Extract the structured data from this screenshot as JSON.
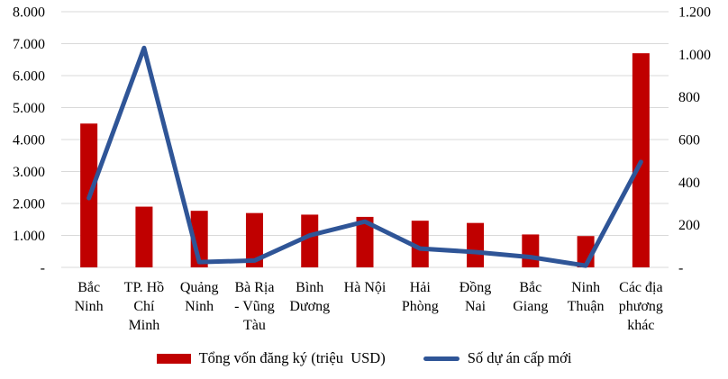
{
  "chart_data": {
    "type": "combo-bar-line",
    "title": "",
    "categories": [
      "Bắc Ninh",
      "TP. Hồ Chí Minh",
      "Quảng Ninh",
      "Bà Rịa - Vũng Tàu",
      "Bình Dương",
      "Hà Nội",
      "Hải Phòng",
      "Đồng Nai",
      "Bắc Giang",
      "Ninh Thuận",
      "Các địa phương khác"
    ],
    "category_label_lines": [
      [
        "Bắc",
        "Ninh"
      ],
      [
        "TP. Hồ",
        "Chí",
        "Minh"
      ],
      [
        "Quảng",
        "Ninh"
      ],
      [
        "Bà Rịa",
        "- Vũng",
        "Tàu"
      ],
      [
        "Bình",
        "Dương"
      ],
      [
        "Hà Nội"
      ],
      [
        "Hải",
        "Phòng"
      ],
      [
        "Đồng",
        "Nai"
      ],
      [
        "Bắc",
        "Giang"
      ],
      [
        "Ninh",
        "Thuận"
      ],
      [
        "Các địa",
        "phương",
        "khác"
      ]
    ],
    "series": [
      {
        "name": "Tổng vốn đăng ký (triệu  USD)",
        "type": "bar",
        "axis": "left",
        "color": "#C00000",
        "values": [
          4500,
          1900,
          1770,
          1700,
          1650,
          1580,
          1460,
          1390,
          1030,
          980,
          6700
        ]
      },
      {
        "name": "Số dự án cấp mới",
        "type": "line",
        "axis": "right",
        "color": "#2F5597",
        "values": [
          325,
          1030,
          25,
          32,
          150,
          215,
          88,
          72,
          48,
          8,
          495
        ]
      }
    ],
    "left_axis": {
      "min": 0,
      "max": 8000,
      "step": 1000,
      "tick_labels": [
        "-",
        "1.000",
        "2.000",
        "3.000",
        "4.000",
        "5.000",
        "6.000",
        "7.000",
        "8.000"
      ]
    },
    "right_axis": {
      "min": 0,
      "max": 1200,
      "step": 200,
      "tick_labels": [
        "-",
        "200",
        "400",
        "600",
        "800",
        "1.000",
        "1.200"
      ]
    },
    "grid": true,
    "gridline_color": "#D9D9D9",
    "legend_position": "bottom"
  }
}
